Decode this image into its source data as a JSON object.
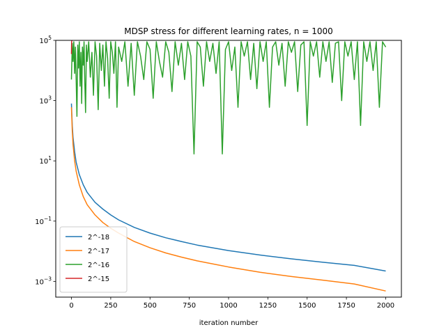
{
  "chart_data": {
    "type": "line",
    "title": "MDSP stress for different learning rates, n = 1000",
    "xlabel": "iteration number",
    "ylabel": "",
    "xlim": [
      -100,
      2100
    ],
    "ylim": [
      0.0003,
      100000
    ],
    "yscale": "log",
    "x_ticks": [
      0,
      250,
      500,
      750,
      1000,
      1250,
      1500,
      1750,
      2000
    ],
    "y_ticks": [
      {
        "value": 0.001,
        "base": "10",
        "exp": "−3"
      },
      {
        "value": 0.1,
        "base": "10",
        "exp": "−1"
      },
      {
        "value": 10,
        "base": "10",
        "exp": "1"
      },
      {
        "value": 1000,
        "base": "10",
        "exp": "3"
      },
      {
        "value": 100000,
        "base": "10",
        "exp": "5"
      }
    ],
    "grid": false,
    "legend_position": "lower left",
    "series": [
      {
        "name": "2^-18",
        "color": "#1f77b4",
        "x": [
          0,
          5,
          10,
          20,
          30,
          50,
          75,
          100,
          150,
          200,
          250,
          300,
          400,
          500,
          600,
          700,
          800,
          1000,
          1200,
          1400,
          1600,
          1800,
          2000
        ],
        "y": [
          800,
          150,
          60,
          20,
          9,
          3.5,
          1.6,
          0.9,
          0.42,
          0.25,
          0.16,
          0.11,
          0.062,
          0.04,
          0.028,
          0.021,
          0.016,
          0.0105,
          0.0075,
          0.0056,
          0.0043,
          0.0034,
          0.0022
        ]
      },
      {
        "name": "2^-17",
        "color": "#ff7f0e",
        "x": [
          0,
          5,
          10,
          20,
          30,
          50,
          75,
          100,
          150,
          200,
          250,
          300,
          400,
          500,
          600,
          700,
          800,
          1000,
          1200,
          1400,
          1600,
          1800,
          2000
        ],
        "y": [
          600,
          100,
          35,
          10,
          4.5,
          1.6,
          0.65,
          0.35,
          0.16,
          0.09,
          0.058,
          0.04,
          0.021,
          0.013,
          0.0088,
          0.0064,
          0.0048,
          0.003,
          0.002,
          0.00145,
          0.0011,
          0.00082,
          0.00048
        ]
      },
      {
        "name": "2^-16",
        "color": "#2ca02c",
        "x": [
          0,
          5,
          10,
          15,
          20,
          25,
          30,
          35,
          40,
          45,
          50,
          55,
          60,
          65,
          70,
          75,
          80,
          85,
          90,
          95,
          100,
          110,
          120,
          130,
          140,
          150,
          160,
          170,
          180,
          190,
          200,
          210,
          220,
          230,
          240,
          250,
          260,
          270,
          280,
          290,
          300,
          320,
          340,
          360,
          380,
          400,
          420,
          440,
          460,
          480,
          500,
          520,
          540,
          560,
          580,
          600,
          620,
          640,
          660,
          680,
          700,
          720,
          740,
          760,
          780,
          800,
          820,
          840,
          860,
          880,
          900,
          920,
          940,
          960,
          980,
          1000,
          1020,
          1040,
          1060,
          1080,
          1100,
          1120,
          1140,
          1160,
          1180,
          1200,
          1220,
          1240,
          1260,
          1280,
          1300,
          1320,
          1340,
          1360,
          1380,
          1400,
          1420,
          1440,
          1460,
          1480,
          1500,
          1520,
          1540,
          1560,
          1580,
          1600,
          1620,
          1640,
          1660,
          1680,
          1700,
          1720,
          1740,
          1760,
          1780,
          1800,
          1820,
          1840,
          1860,
          1880,
          1900,
          1920,
          1940,
          1960,
          1980,
          2000
        ],
        "y": [
          5000,
          80000,
          20000,
          90000,
          8000,
          60000,
          5000,
          300,
          70000,
          12000,
          90000,
          3000,
          40000,
          800,
          60000,
          15000,
          90000,
          4000,
          400,
          70000,
          20000,
          90000,
          6000,
          40000,
          1500,
          90000,
          30000,
          500,
          80000,
          10000,
          70000,
          3000,
          90000,
          25000,
          1200,
          90000,
          40000,
          8000,
          90000,
          600,
          60000,
          20000,
          90000,
          3000,
          80000,
          1500,
          90000,
          30000,
          5000,
          90000,
          50000,
          1200,
          90000,
          20000,
          6000,
          90000,
          40000,
          2000,
          90000,
          15000,
          80000,
          5000,
          90000,
          30000,
          17,
          90000,
          60000,
          3000,
          90000,
          20000,
          80000,
          8000,
          90000,
          17,
          50000,
          90000,
          10000,
          60000,
          600,
          90000,
          30000,
          90000,
          5000,
          80000,
          2500,
          90000,
          20000,
          90000,
          600,
          60000,
          90000,
          15000,
          80000,
          3000,
          90000,
          40000,
          90000,
          2000,
          70000,
          90000,
          150,
          90000,
          30000,
          90000,
          6000,
          90000,
          20000,
          90000,
          4000,
          80000,
          90000,
          1000,
          90000,
          30000,
          90000,
          5000,
          90000,
          150,
          90000,
          20000,
          90000,
          10000,
          90000,
          600,
          90000,
          60000
        ]
      },
      {
        "name": "2^-15",
        "color": "#d62728",
        "x": [
          0,
          1,
          2,
          3,
          4,
          5
        ],
        "y": [
          35000,
          90000,
          100000,
          100000,
          100000,
          100000
        ]
      }
    ]
  }
}
